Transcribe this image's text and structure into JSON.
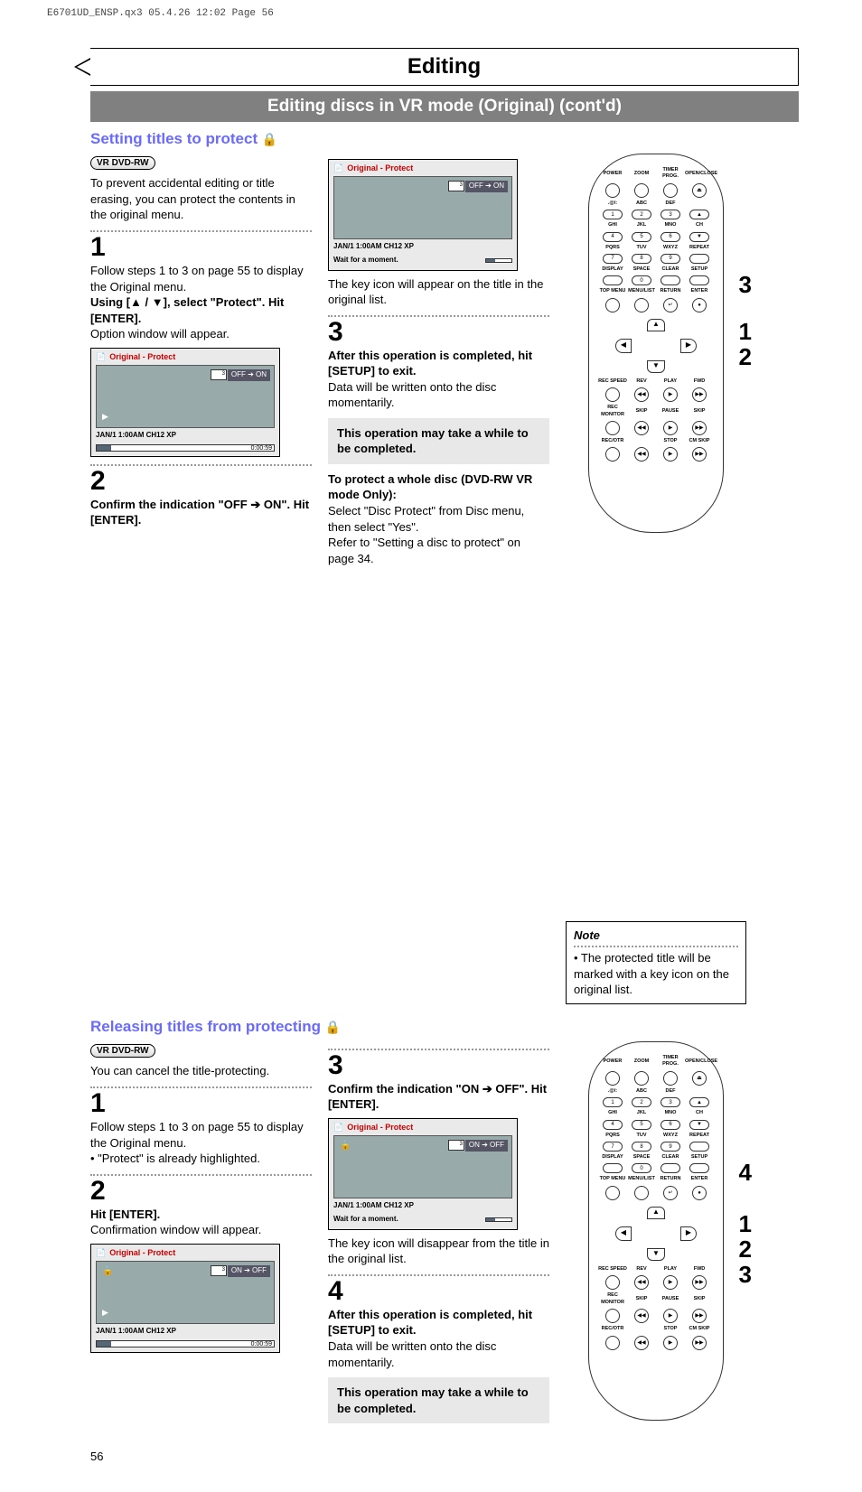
{
  "print_header": "E6701UD_ENSP.qx3  05.4.26 12:02  Page 56",
  "page_number": "56",
  "title": "Editing",
  "subtitle": "Editing discs in VR mode (Original) (cont'd)",
  "section1": {
    "heading": "Setting titles to protect",
    "badge": "DVD-RW",
    "intro": "To prevent accidental editing or title erasing, you can protect the contents in the original menu.",
    "step1": {
      "num": "1",
      "p1": "Follow steps 1 to 3 on page 55 to display the Original menu.",
      "p2": "Using [▲ / ▼], select \"Protect\". Hit [ENTER].",
      "p3": "Option window will appear."
    },
    "osd1": {
      "header": "Original - Protect",
      "thumb": "3",
      "status": "OFF ➔ ON",
      "footer": "JAN/1 1:00AM CH12 XP",
      "time": "0:00:59"
    },
    "step2": {
      "num": "2",
      "p1": "Confirm the indication \"OFF ➔ ON\". Hit [ENTER]."
    },
    "osd2": {
      "header": "Original - Protect",
      "thumb": "3",
      "status": "OFF ➔ ON",
      "footer": "JAN/1 1:00AM CH12 XP",
      "wait": "Wait for a moment."
    },
    "after_osd2": "The key icon will appear on the title in the original list.",
    "step3": {
      "num": "3",
      "p1": "After this operation is completed, hit [SETUP] to exit.",
      "p2": "Data will be written onto the disc momentarily."
    },
    "callout": "This operation may take a while to be completed.",
    "whole_disc": {
      "h": "To protect a whole disc (DVD-RW VR mode Only):",
      "p1": "Select \"Disc Protect\" from Disc menu, then select \"Yes\".",
      "p2": "Refer to \"Setting a disc to protect\" on page 34."
    },
    "note": {
      "title": "Note",
      "body": "• The protected title will be marked with a key icon on the original list."
    },
    "remote_nums": [
      "3",
      "1",
      "2"
    ]
  },
  "section2": {
    "heading": "Releasing titles from protecting",
    "badge": "DVD-RW",
    "intro": "You can cancel the title-protecting.",
    "step1": {
      "num": "1",
      "p1": "Follow steps 1 to 3 on page 55 to display the Original menu.",
      "p2": "• \"Protect\" is already highlighted."
    },
    "step2": {
      "num": "2",
      "p1": "Hit [ENTER].",
      "p2": "Confirmation window will appear."
    },
    "osd1": {
      "header": "Original - Protect",
      "thumb": "3",
      "status": "ON ➔ OFF",
      "footer": "JAN/1 1:00AM CH12 XP",
      "time": "0:00:59"
    },
    "step3": {
      "num": "3",
      "p1": "Confirm the indication \"ON ➔ OFF\". Hit [ENTER]."
    },
    "osd2": {
      "header": "Original - Protect",
      "thumb": "3",
      "status": "ON ➔ OFF",
      "footer": "JAN/1 1:00AM CH12 XP",
      "wait": "Wait for a moment."
    },
    "after_osd2": "The key icon will disappear from the title in the original list.",
    "step4": {
      "num": "4",
      "p1": "After this operation is completed, hit [SETUP] to exit.",
      "p2": "Data will be written onto the disc momentarily."
    },
    "callout": "This operation may take a while to be completed.",
    "remote_nums": [
      "4",
      "1",
      "2",
      "3"
    ]
  },
  "remote": {
    "row_labels": [
      [
        "POWER",
        "ZOOM",
        "TIMER PROG.",
        "OPEN/CLOSE"
      ],
      [
        ".@/:",
        "ABC",
        "DEF",
        ""
      ],
      [
        "GHI",
        "JKL",
        "MNO",
        "CH"
      ],
      [
        "PQRS",
        "TUV",
        "WXYZ",
        "REPEAT"
      ],
      [
        "DISPLAY",
        "SPACE",
        "CLEAR",
        "SETUP"
      ],
      [
        "TOP MENU",
        "MENU/LIST",
        "RETURN",
        "ENTER"
      ],
      [
        "REC SPEED",
        "REV",
        "PLAY",
        "FWD"
      ],
      [
        "REC MONITOR",
        "SKIP",
        "PAUSE",
        "SKIP"
      ],
      [
        "REC/OTR",
        "",
        "STOP",
        "CM SKIP"
      ]
    ],
    "numpad": [
      "1",
      "2",
      "3",
      "▲",
      "4",
      "5",
      "6",
      "▼",
      "7",
      "8",
      "9",
      "",
      "",
      "0",
      "",
      ""
    ]
  }
}
